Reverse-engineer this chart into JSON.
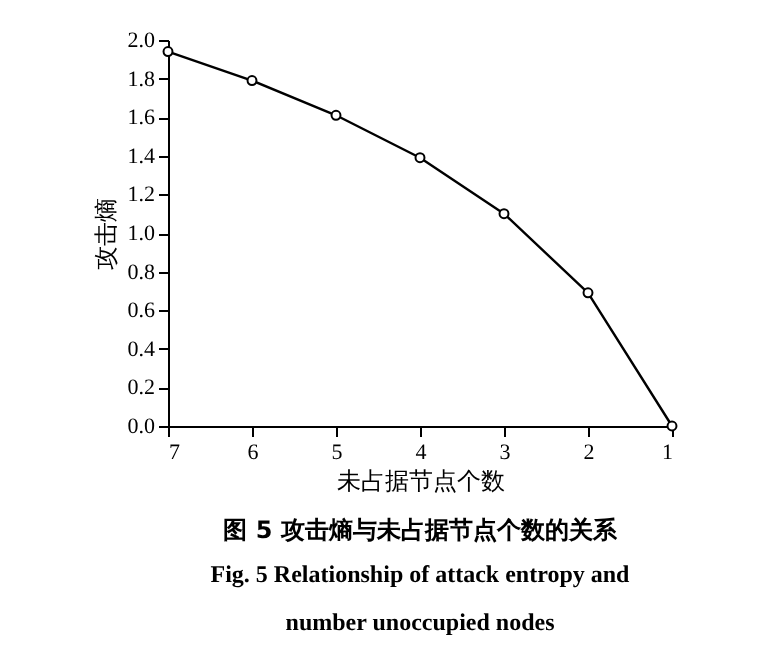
{
  "chart_data": {
    "type": "line",
    "title": "图 5   攻击熵与未占据节点个数的关系",
    "subtitle": "Fig. 5   Relationship of attack entropy and number unoccupied nodes",
    "xlabel": "未占据节点个数",
    "ylabel": "攻击熵",
    "x": [
      7,
      6,
      5,
      4,
      3,
      2,
      1
    ],
    "series": [
      {
        "color": "#000000",
        "values": [
          1.94,
          1.79,
          1.61,
          1.39,
          1.1,
          0.69,
          0.0
        ]
      }
    ],
    "xlim": [
      7,
      1
    ],
    "xticks": [
      7,
      6,
      5,
      4,
      3,
      2,
      1
    ],
    "ylim": [
      0,
      2.0
    ],
    "yticks": [
      {
        "value": 0,
        "label": "0.0"
      },
      0.2,
      0.4,
      0.6,
      0.8,
      {
        "value": 1,
        "label": "1.0"
      },
      1.2,
      1.4,
      1.6,
      1.8,
      {
        "value": 2,
        "label": "2.0"
      }
    ],
    "grid": false,
    "marker": "circle",
    "line_style": "solid"
  }
}
